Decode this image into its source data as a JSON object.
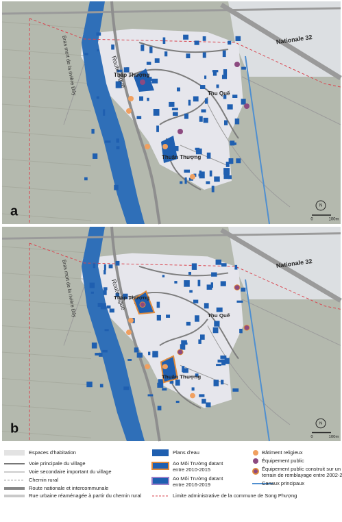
{
  "panels": [
    {
      "letter": "a",
      "places": [
        "Tháp Thượng",
        "Thu Quế",
        "Thuận Thượng"
      ],
      "road": "Route digue",
      "river": "Bras mort de la rivière Đáy",
      "highway": "Nationale 32",
      "north": "N",
      "scale": [
        "0",
        "100m"
      ]
    },
    {
      "letter": "b",
      "places": [
        "Tháp Thượng",
        "Thu Quế",
        "Thuận Thượng"
      ],
      "road": "Route digue",
      "river": "Bras mort de la rivière Đáy",
      "highway": "Nationale 32",
      "north": "N",
      "scale": [
        "0",
        "100m"
      ]
    }
  ],
  "legend": [
    {
      "label": [
        "Espaces d'habitation"
      ]
    },
    {
      "label": [
        "Voie principale du village"
      ]
    },
    {
      "label": [
        "Voie secondaire important du village"
      ]
    },
    {
      "label": [
        "Chemin rural"
      ]
    },
    {
      "label": [
        "Route nationale et intercommunale"
      ]
    },
    {
      "label": [
        "Rue urbaine réaménagée à partir du chemin rural"
      ]
    },
    {
      "label": [
        "Plans d'eau"
      ]
    },
    {
      "label": [
        "Ao Môi Trường datant",
        "entre 2010-2015"
      ]
    },
    {
      "label": [
        "Ao Môi Trường datant",
        "entre 2016-2019"
      ]
    },
    {
      "label": [
        "Limite administrative de la commune de Song Phượng"
      ]
    },
    {
      "label": [
        "Bâtiment religieux"
      ]
    },
    {
      "label": [
        "Équipement public"
      ]
    },
    {
      "label": [
        "Équipement public construit sur un",
        "terrain de remblayage entre 2002-2018"
      ]
    },
    {
      "label": [
        "Canaux principaux"
      ]
    }
  ]
}
